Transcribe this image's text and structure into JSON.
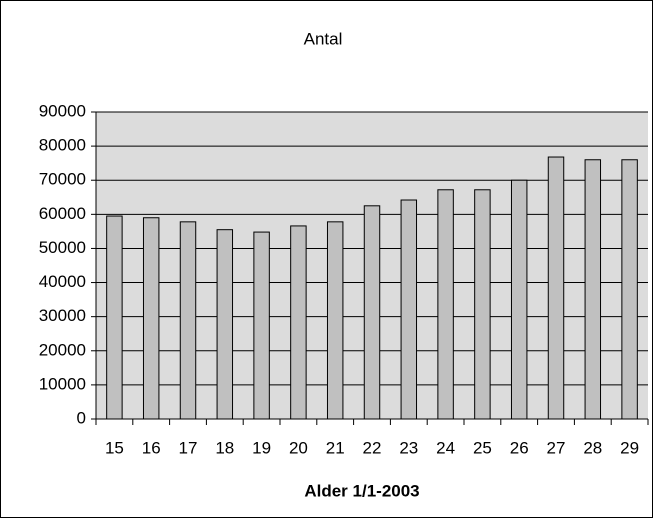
{
  "chart_data": {
    "type": "bar",
    "title": "Antal",
    "x_label": "Alder 1/1-2003",
    "categories": [
      "15",
      "16",
      "17",
      "18",
      "19",
      "20",
      "21",
      "22",
      "23",
      "24",
      "25",
      "26",
      "27",
      "28",
      "29"
    ],
    "values": [
      59500,
      59000,
      57800,
      55500,
      54800,
      56600,
      57800,
      62500,
      64200,
      67200,
      67200,
      70000,
      76800,
      76000,
      76000
    ],
    "color": "#c0c0c0",
    "ylim": [
      0,
      90000
    ],
    "yticks": [
      0,
      10000,
      20000,
      30000,
      40000,
      50000,
      60000,
      70000,
      80000,
      90000
    ],
    "grid": true
  }
}
